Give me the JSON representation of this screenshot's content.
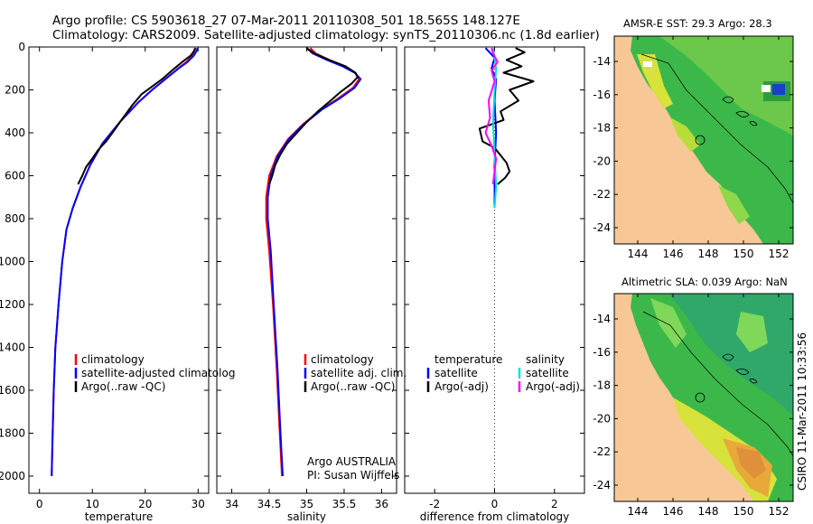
{
  "header": {
    "line1": "Argo profile: CS 5903618_27 07-Mar-2011 20110308_501 18.565S 148.127E",
    "line2": "Climatology: CARS2009. Satellite-adjusted climatology: synTS_20110306.nc (1.8d earlier)"
  },
  "depth_axis": {
    "ticks": [
      0,
      200,
      400,
      600,
      800,
      1000,
      1200,
      1400,
      1600,
      1800,
      2000
    ],
    "ylim": [
      0,
      2080
    ]
  },
  "chart_data": [
    {
      "type": "line",
      "id": "temperature",
      "xlabel": "temperature",
      "ylabel": "",
      "xlim": [
        -2,
        32
      ],
      "xticks": [
        0,
        10,
        20,
        30
      ],
      "ylim": [
        0,
        2080
      ],
      "invert_y": true,
      "series": [
        {
          "name": "climatology",
          "color": "#ff0000",
          "points": [
            [
              29.4,
              5
            ],
            [
              29.3,
              20
            ],
            [
              28.9,
              40
            ],
            [
              27.8,
              70
            ],
            [
              26.2,
              100
            ],
            [
              23.8,
              150
            ],
            [
              21.3,
              200
            ],
            [
              18.6,
              260
            ],
            [
              15.2,
              350
            ],
            [
              11.9,
              450
            ],
            [
              9.6,
              550
            ],
            [
              7.8,
              650
            ],
            [
              6.3,
              750
            ],
            [
              5.1,
              850
            ],
            [
              4.3,
              1000
            ],
            [
              3.6,
              1200
            ],
            [
              3.0,
              1400
            ],
            [
              2.7,
              1600
            ],
            [
              2.5,
              1800
            ],
            [
              2.3,
              2000
            ]
          ]
        },
        {
          "name": "satellite-adjusted climatology",
          "color": "#0000ff",
          "points": [
            [
              29.9,
              5
            ],
            [
              29.7,
              20
            ],
            [
              29.2,
              40
            ],
            [
              28.0,
              70
            ],
            [
              26.3,
              100
            ],
            [
              23.8,
              150
            ],
            [
              21.3,
              200
            ],
            [
              18.6,
              260
            ],
            [
              15.2,
              350
            ],
            [
              11.9,
              450
            ],
            [
              9.6,
              550
            ],
            [
              7.8,
              650
            ],
            [
              6.3,
              750
            ],
            [
              5.1,
              850
            ],
            [
              4.3,
              1000
            ],
            [
              3.6,
              1200
            ],
            [
              3.0,
              1400
            ],
            [
              2.7,
              1600
            ],
            [
              2.5,
              1800
            ],
            [
              2.3,
              2000
            ]
          ]
        },
        {
          "name": "Argo(..raw -QC)",
          "color": "#000000",
          "points": [
            [
              29.5,
              5
            ],
            [
              29.2,
              20
            ],
            [
              28.6,
              40
            ],
            [
              27.0,
              70
            ],
            [
              25.5,
              100
            ],
            [
              23.2,
              150
            ],
            [
              21.0,
              190
            ],
            [
              19.3,
              220
            ],
            [
              17.6,
              270
            ],
            [
              15.8,
              330
            ],
            [
              14.1,
              390
            ],
            [
              12.6,
              440
            ],
            [
              11.1,
              480
            ],
            [
              10.0,
              520
            ],
            [
              8.8,
              560
            ],
            [
              8.1,
              600
            ],
            [
              7.3,
              640
            ]
          ]
        }
      ],
      "legend": [
        "climatology",
        "satellite-adjusted climatolog",
        "Argo(..raw -QC)"
      ]
    },
    {
      "type": "line",
      "id": "salinity",
      "xlabel": "salinity",
      "xlim": [
        33.8,
        36.2
      ],
      "xticks": [
        34,
        34.5,
        35,
        35.5,
        36
      ],
      "ylim": [
        0,
        2080
      ],
      "invert_y": true,
      "series": [
        {
          "name": "climatology",
          "color": "#ff0000",
          "points": [
            [
              35.05,
              5
            ],
            [
              35.12,
              30
            ],
            [
              35.3,
              60
            ],
            [
              35.5,
              90
            ],
            [
              35.65,
              120
            ],
            [
              35.7,
              150
            ],
            [
              35.62,
              190
            ],
            [
              35.42,
              240
            ],
            [
              35.2,
              290
            ],
            [
              34.95,
              360
            ],
            [
              34.75,
              430
            ],
            [
              34.6,
              510
            ],
            [
              34.5,
              600
            ],
            [
              34.46,
              700
            ],
            [
              34.46,
              800
            ],
            [
              34.5,
              950
            ],
            [
              34.55,
              1200
            ],
            [
              34.6,
              1500
            ],
            [
              34.64,
              1800
            ],
            [
              34.67,
              2000
            ]
          ]
        },
        {
          "name": "satellite adj. clim.",
          "color": "#0000ff",
          "points": [
            [
              35.0,
              5
            ],
            [
              35.08,
              30
            ],
            [
              35.27,
              60
            ],
            [
              35.48,
              90
            ],
            [
              35.64,
              120
            ],
            [
              35.72,
              150
            ],
            [
              35.64,
              190
            ],
            [
              35.44,
              240
            ],
            [
              35.21,
              290
            ],
            [
              34.96,
              360
            ],
            [
              34.76,
              430
            ],
            [
              34.61,
              510
            ],
            [
              34.52,
              600
            ],
            [
              34.48,
              700
            ],
            [
              34.48,
              800
            ],
            [
              34.52,
              950
            ],
            [
              34.56,
              1200
            ],
            [
              34.61,
              1500
            ],
            [
              34.65,
              1800
            ],
            [
              34.68,
              2000
            ]
          ]
        },
        {
          "name": "Argo(..raw -QC)",
          "color": "#000000",
          "points": [
            [
              35.0,
              5
            ],
            [
              35.1,
              30
            ],
            [
              35.3,
              60
            ],
            [
              35.52,
              90
            ],
            [
              35.65,
              120
            ],
            [
              35.68,
              140
            ],
            [
              35.6,
              170
            ],
            [
              35.45,
              210
            ],
            [
              35.32,
              250
            ],
            [
              35.15,
              300
            ],
            [
              35.0,
              350
            ],
            [
              34.87,
              400
            ],
            [
              34.74,
              450
            ],
            [
              34.65,
              500
            ],
            [
              34.58,
              550
            ],
            [
              34.54,
              600
            ],
            [
              34.5,
              640
            ]
          ]
        }
      ],
      "legend": [
        "climatology",
        "satellite adj. clim.",
        "Argo(..raw -QC)"
      ],
      "annotation": [
        "Argo AUSTRALIA",
        "PI: Susan Wijffels"
      ]
    },
    {
      "type": "line",
      "id": "difference",
      "xlabel": "difference from climatology",
      "xlim": [
        -3,
        3
      ],
      "xticks": [
        -2,
        0,
        2
      ],
      "ylim": [
        0,
        2080
      ],
      "invert_y": true,
      "zero_line": true,
      "series": [
        {
          "name": "temperature satellite",
          "color": "#0000ff",
          "points": [
            [
              -0.3,
              5
            ],
            [
              -0.2,
              20
            ],
            [
              0.0,
              50
            ],
            [
              -0.1,
              100
            ],
            [
              0.05,
              150
            ],
            [
              0.0,
              250
            ],
            [
              0.05,
              400
            ],
            [
              0.0,
              550
            ],
            [
              0.0,
              700
            ],
            [
              0.0,
              750
            ]
          ]
        },
        {
          "name": "temperature Argo(-adj)",
          "color": "#000000",
          "points": [
            [
              0.7,
              5
            ],
            [
              1.0,
              25
            ],
            [
              0.4,
              60
            ],
            [
              0.9,
              90
            ],
            [
              0.3,
              120
            ],
            [
              1.3,
              160
            ],
            [
              0.5,
              200
            ],
            [
              0.8,
              250
            ],
            [
              0.2,
              300
            ],
            [
              0.3,
              340
            ],
            [
              -0.5,
              380
            ],
            [
              -0.4,
              440
            ],
            [
              0.0,
              470
            ],
            [
              0.4,
              540
            ],
            [
              0.5,
              580
            ],
            [
              0.35,
              610
            ],
            [
              0.1,
              640
            ]
          ]
        },
        {
          "name": "salinity satellite",
          "color": "#00e0e0",
          "points": [
            [
              -0.05,
              5
            ],
            [
              0.0,
              50
            ],
            [
              0.05,
              100
            ],
            [
              0.0,
              200
            ],
            [
              -0.05,
              350
            ],
            [
              0.0,
              500
            ],
            [
              0.05,
              650
            ],
            [
              0.0,
              750
            ]
          ]
        },
        {
          "name": "salinity Argo(-adj)",
          "color": "#ff00ff",
          "points": [
            [
              -0.1,
              5
            ],
            [
              -0.05,
              30
            ],
            [
              0.1,
              70
            ],
            [
              -0.1,
              110
            ],
            [
              0.0,
              160
            ],
            [
              -0.2,
              250
            ],
            [
              -0.15,
              330
            ],
            [
              -0.3,
              400
            ],
            [
              -0.1,
              460
            ],
            [
              0.05,
              520
            ],
            [
              0.0,
              580
            ],
            [
              -0.05,
              640
            ]
          ]
        }
      ],
      "legend_left_title": "temperature",
      "legend_right_title": "salinity",
      "legend_left": [
        "satellite",
        "Argo(-adj)"
      ],
      "legend_right": [
        "satellite",
        "Argo(-adj)"
      ]
    }
  ],
  "maps": [
    {
      "id": "sst",
      "title": "AMSR-E SST: 29.3 Argo: 28.3",
      "yticks": [
        "-14",
        "-16",
        "-18",
        "-20",
        "-22",
        "-24"
      ],
      "xticks": [
        "144",
        "146",
        "148",
        "150",
        "152"
      ]
    },
    {
      "id": "sla",
      "title": "Altimetric SLA: 0.039 Argo: NaN",
      "yticks": [
        "-14",
        "-16",
        "-18",
        "-20",
        "-22",
        "-24"
      ],
      "xticks": [
        "144",
        "146",
        "148",
        "150",
        "152"
      ]
    }
  ],
  "credit": "CSIRO 11-Mar-2011 10:33:56",
  "colors": {
    "land": "#f7c896",
    "green": "#3cb84a",
    "lightgreen": "#7fd85a",
    "yellow": "#d7e23a",
    "orange": "#e89a35"
  }
}
